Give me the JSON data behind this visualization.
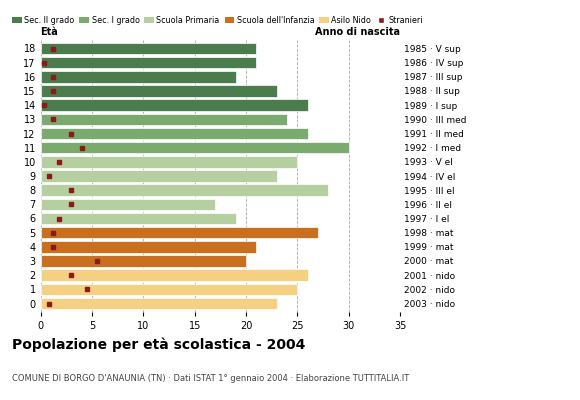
{
  "ages": [
    18,
    17,
    16,
    15,
    14,
    13,
    12,
    11,
    10,
    9,
    8,
    7,
    6,
    5,
    4,
    3,
    2,
    1,
    0
  ],
  "years": [
    "1985 · V sup",
    "1986 · IV sup",
    "1987 · III sup",
    "1988 · II sup",
    "1989 · I sup",
    "1990 · III med",
    "1991 · II med",
    "1992 · I med",
    "1993 · V el",
    "1994 · IV el",
    "1995 · III el",
    "1996 · II el",
    "1997 · I el",
    "1998 · mat",
    "1999 · mat",
    "2000 · mat",
    "2001 · nido",
    "2002 · nido",
    "2003 · nido"
  ],
  "values": [
    21,
    21,
    19,
    23,
    26,
    24,
    26,
    30,
    25,
    23,
    28,
    17,
    19,
    27,
    21,
    20,
    26,
    25,
    23
  ],
  "stranieri": [
    1.2,
    0.3,
    1.2,
    1.2,
    0.3,
    1.2,
    3.0,
    4.0,
    1.8,
    0.8,
    3.0,
    3.0,
    1.8,
    1.2,
    1.2,
    5.5,
    3.0,
    4.5,
    0.8
  ],
  "bar_colors": [
    "#4a7c4e",
    "#4a7c4e",
    "#4a7c4e",
    "#4a7c4e",
    "#4a7c4e",
    "#7aaa6e",
    "#7aaa6e",
    "#7aaa6e",
    "#b5cfa0",
    "#b5cfa0",
    "#b5cfa0",
    "#b5cfa0",
    "#b5cfa0",
    "#c97020",
    "#c97020",
    "#c97020",
    "#f5d080",
    "#f5d080",
    "#f5d080"
  ],
  "legend_labels": [
    "Sec. II grado",
    "Sec. I grado",
    "Scuola Primaria",
    "Scuola dell'Infanzia",
    "Asilo Nido",
    "Stranieri"
  ],
  "legend_colors": [
    "#4a7c4e",
    "#7aaa6e",
    "#b5cfa0",
    "#c97020",
    "#f5d080",
    "#8b1a1a"
  ],
  "title": "Popolazione per età scolastica - 2004",
  "subtitle": "COMUNE DI BORGO D'ANAUNIA (TN) · Dati ISTAT 1° gennaio 2004 · Elaborazione TUTTITALIA.IT",
  "label_eta": "Età",
  "label_anno": "Anno di nascita",
  "xlim": [
    0,
    35
  ],
  "xticks": [
    0,
    5,
    10,
    15,
    20,
    25,
    30,
    35
  ],
  "stranieri_color": "#8b1a1a",
  "bg_color": "#ffffff",
  "bar_height": 0.82,
  "grid_color": "#aaaaaa"
}
